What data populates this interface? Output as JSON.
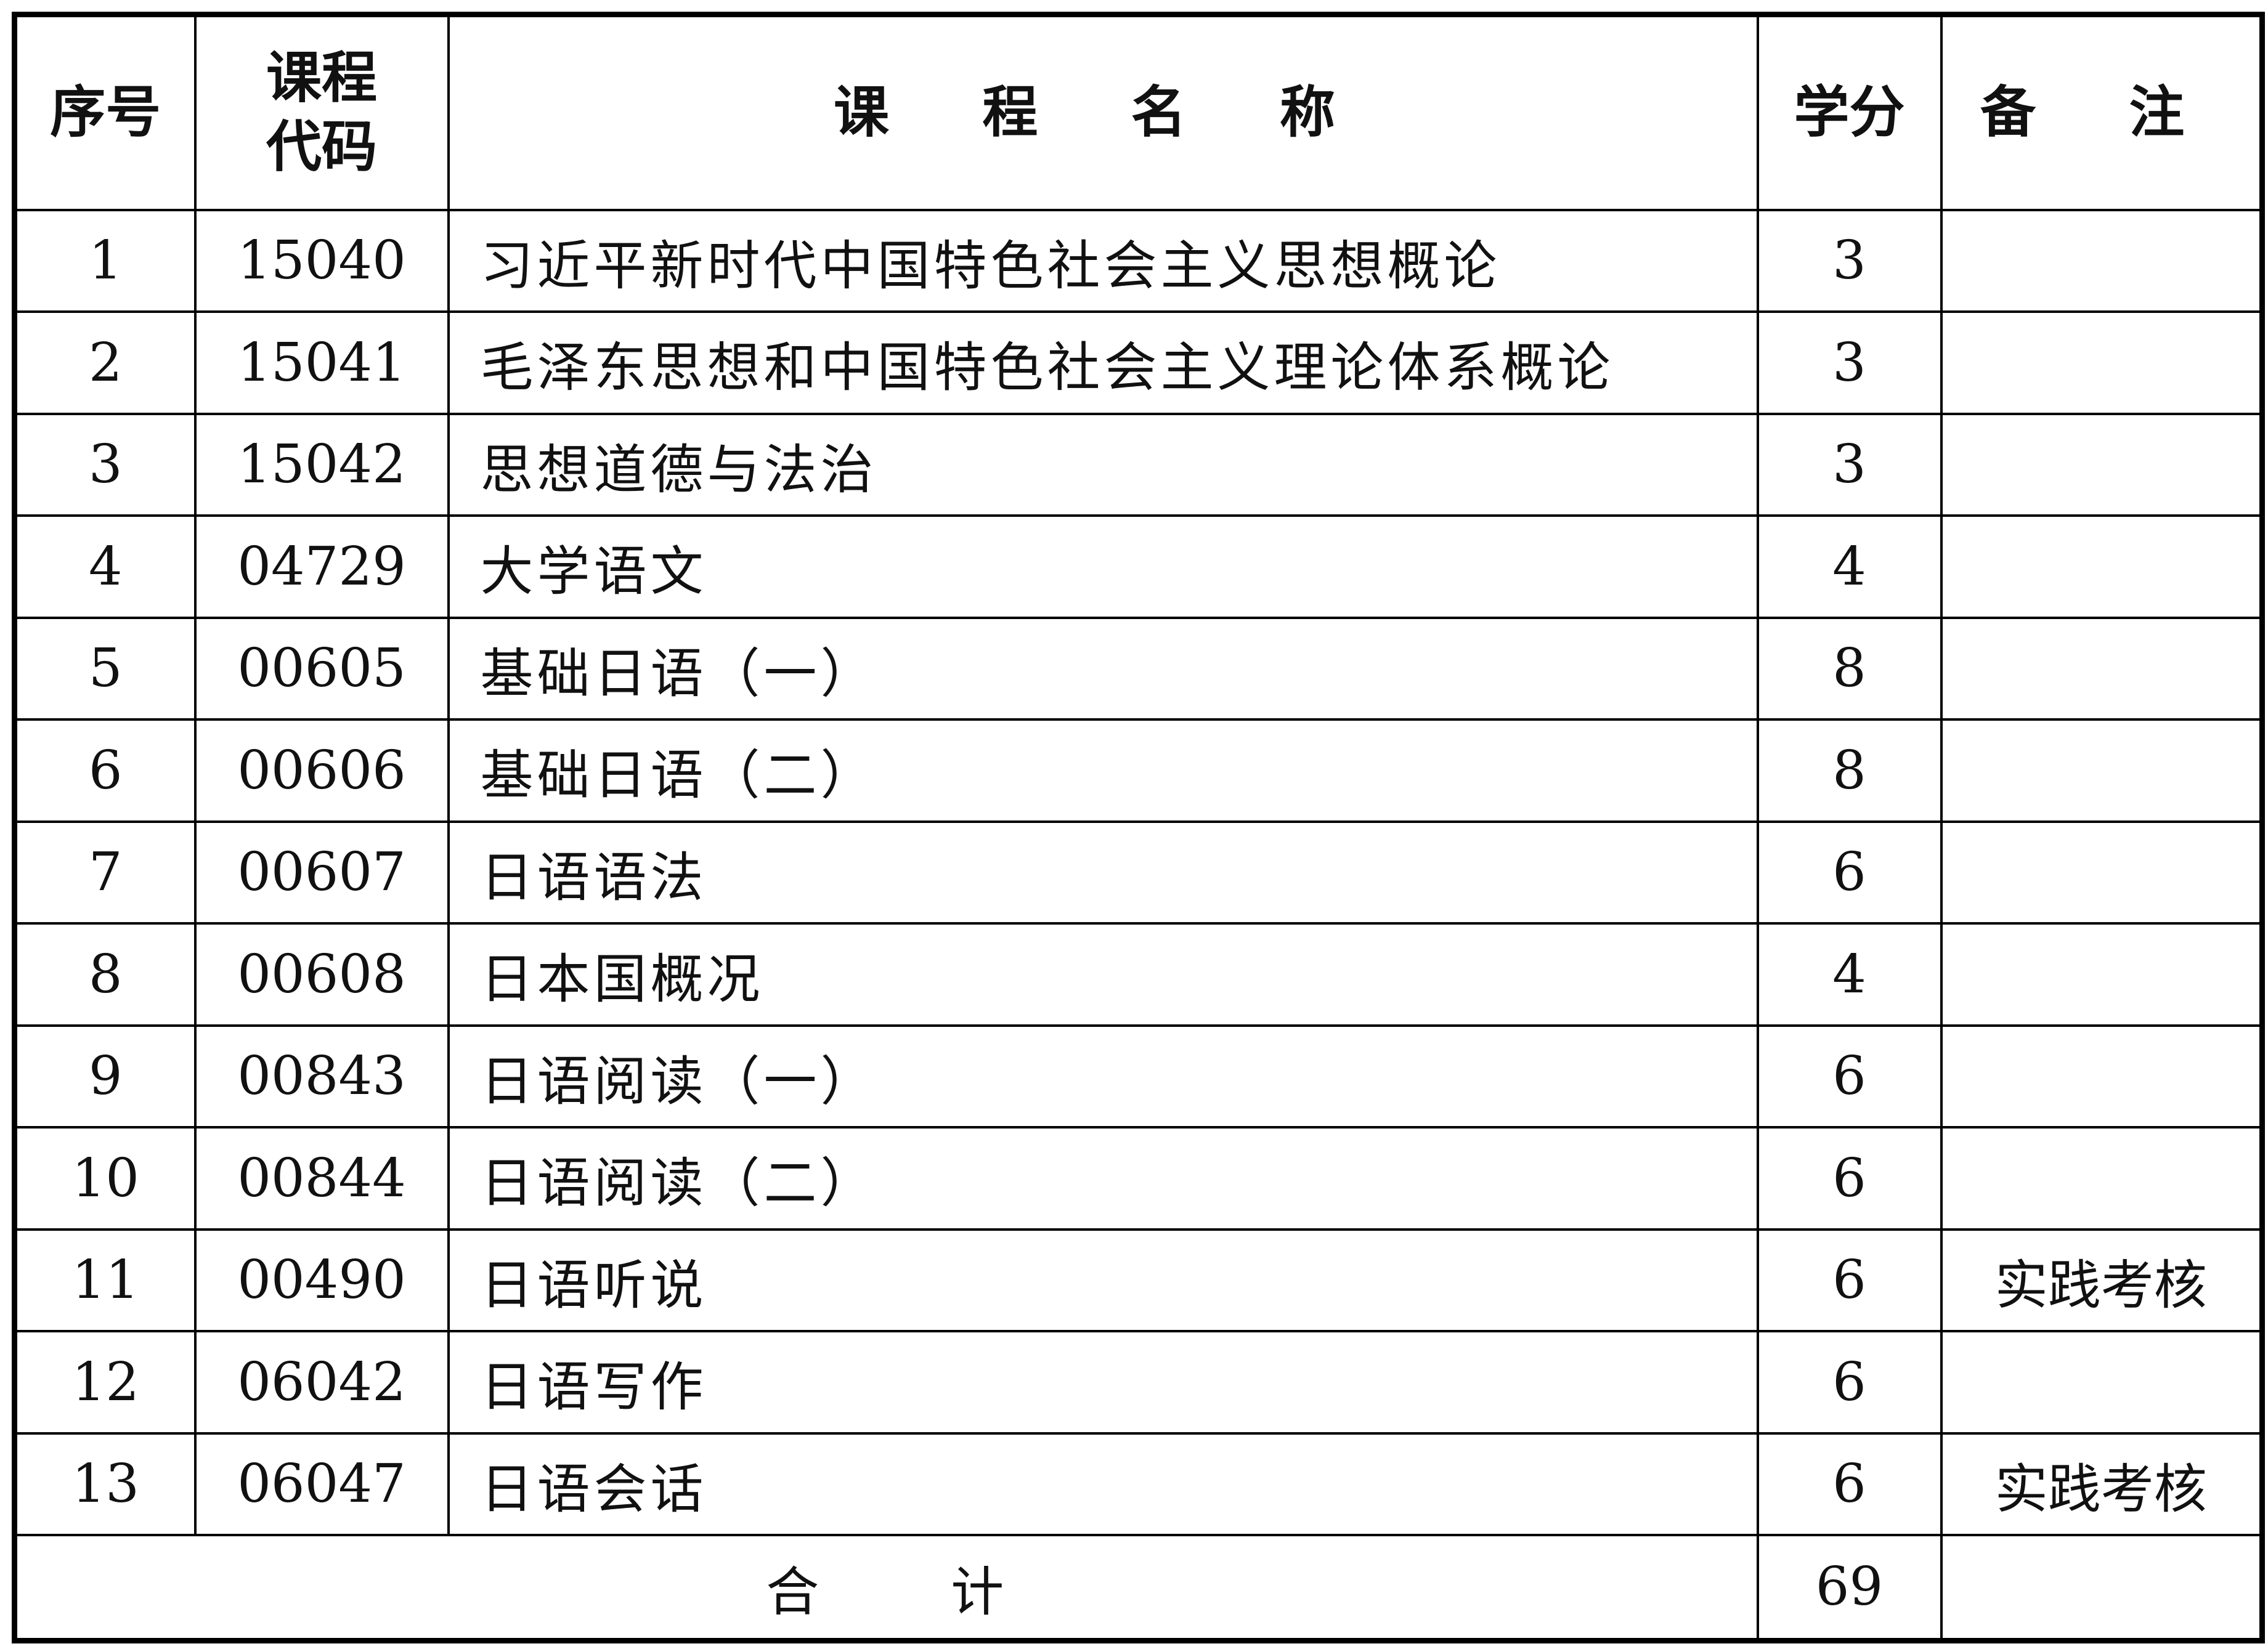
{
  "headers": {
    "index": "序号",
    "code": "课程\n代码",
    "code_line1": "课程",
    "code_line2": "代码",
    "name": "课 程 名 称",
    "credits": "学分",
    "notes": "备 注"
  },
  "rows": [
    {
      "index": "1",
      "code": "15040",
      "name": "习近平新时代中国特色社会主义思想概论",
      "credits": "3",
      "notes": ""
    },
    {
      "index": "2",
      "code": "15041",
      "name": "毛泽东思想和中国特色社会主义理论体系概论",
      "credits": "3",
      "notes": ""
    },
    {
      "index": "3",
      "code": "15042",
      "name": "思想道德与法治",
      "credits": "3",
      "notes": ""
    },
    {
      "index": "4",
      "code": "04729",
      "name": "大学语文",
      "credits": "4",
      "notes": ""
    },
    {
      "index": "5",
      "code": "00605",
      "name": "基础日语（一）",
      "credits": "8",
      "notes": ""
    },
    {
      "index": "6",
      "code": "00606",
      "name": "基础日语（二）",
      "credits": "8",
      "notes": ""
    },
    {
      "index": "7",
      "code": "00607",
      "name": "日语语法",
      "credits": "6",
      "notes": ""
    },
    {
      "index": "8",
      "code": "00608",
      "name": "日本国概况",
      "credits": "4",
      "notes": ""
    },
    {
      "index": "9",
      "code": "00843",
      "name": "日语阅读（一）",
      "credits": "6",
      "notes": ""
    },
    {
      "index": "10",
      "code": "00844",
      "name": "日语阅读（二）",
      "credits": "6",
      "notes": ""
    },
    {
      "index": "11",
      "code": "00490",
      "name": "日语听说",
      "credits": "6",
      "notes": "实践考核"
    },
    {
      "index": "12",
      "code": "06042",
      "name": "日语写作",
      "credits": "6",
      "notes": ""
    },
    {
      "index": "13",
      "code": "06047",
      "name": "日语会话",
      "credits": "6",
      "notes": "实践考核"
    }
  ],
  "total": {
    "label_left": "合",
    "label_right": "计",
    "credits": "69",
    "notes": ""
  }
}
